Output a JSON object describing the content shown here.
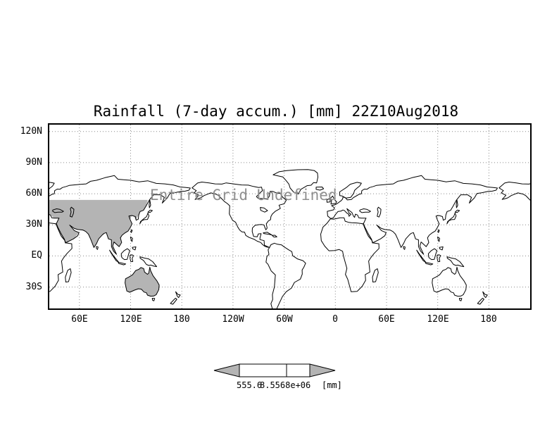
{
  "title": "Rainfall (7-day accum.) [mm] 22Z10Aug2018",
  "overlay_message": "Entire Grid Undefined",
  "axes": {
    "lat_labels": [
      "120N",
      "90N",
      "60N",
      "30N",
      "EQ",
      "30S"
    ],
    "lon_labels": [
      "60E",
      "120E",
      "180",
      "120W",
      "60W",
      "0",
      "60E",
      "120E",
      "180"
    ]
  },
  "colorbar": {
    "left_value": "555.6",
    "right_value": "8.5568e+06",
    "unit": "[mm]"
  },
  "colors": {
    "shade_gray": "#b4b4b4",
    "grid": "#8a8a8a",
    "coast": "#000000",
    "overlay_text": "#8f8f8f"
  },
  "chart_data": {
    "type": "heatmap",
    "title": "Rainfall (7-day accum.) [mm] 22Z10Aug2018",
    "note": "Entire Grid Undefined - no rainfall values are plotted on the world map",
    "values": null,
    "x_tick_labels": [
      "60E",
      "120E",
      "180",
      "120W",
      "60W",
      "0",
      "60E",
      "120E",
      "180"
    ],
    "y_tick_labels": [
      "120N",
      "90N",
      "60N",
      "30N",
      "EQ",
      "30S"
    ],
    "y_range": [
      "30S(+below to ~50S)",
      "120N"
    ],
    "grid": "dotted lat/lon graticule every 30 deg lat / 60 deg lon",
    "legend_position": "horizontal colorbar centered below map",
    "colorbar_tick_labels": [
      "555.6",
      "8.5568e+06"
    ],
    "colorbar_unit": "[mm]",
    "shaded_regions": [
      "southern Asia / Middle East land (first longitude pass)",
      "Australia (first longitude pass)"
    ]
  }
}
